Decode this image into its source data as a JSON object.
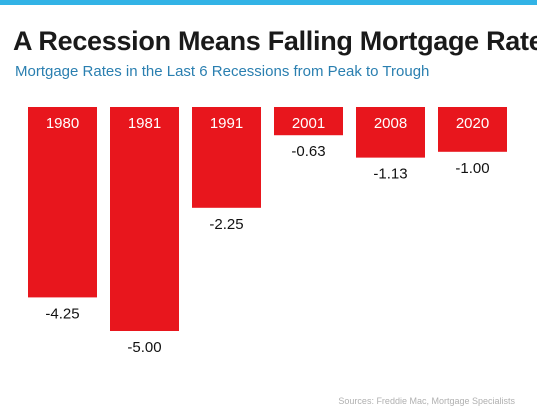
{
  "title": "A Recession Means Falling Mortgage Rates",
  "subtitle": "Mortgage Rates in the Last 6 Recessions from Peak to Trough",
  "source": "Sources: Freddie Mac, Mortgage Specialists",
  "colors": {
    "bar": "#e8161d",
    "title": "#1a1a1a",
    "subtitle": "#2a7fb0",
    "accent": "#32b3e6"
  },
  "chart_data": {
    "type": "bar",
    "categories": [
      "1980",
      "1981",
      "1991",
      "2001",
      "2008",
      "2020"
    ],
    "values": [
      -4.25,
      -5.0,
      -2.25,
      -0.63,
      -1.13,
      -1.0
    ],
    "data_labels": [
      "-4.25",
      "-5.00",
      "-2.25",
      "-0.63",
      "-1.13",
      "-1.00"
    ],
    "ylim": [
      -5,
      0
    ],
    "grid": false,
    "legend": "none"
  }
}
